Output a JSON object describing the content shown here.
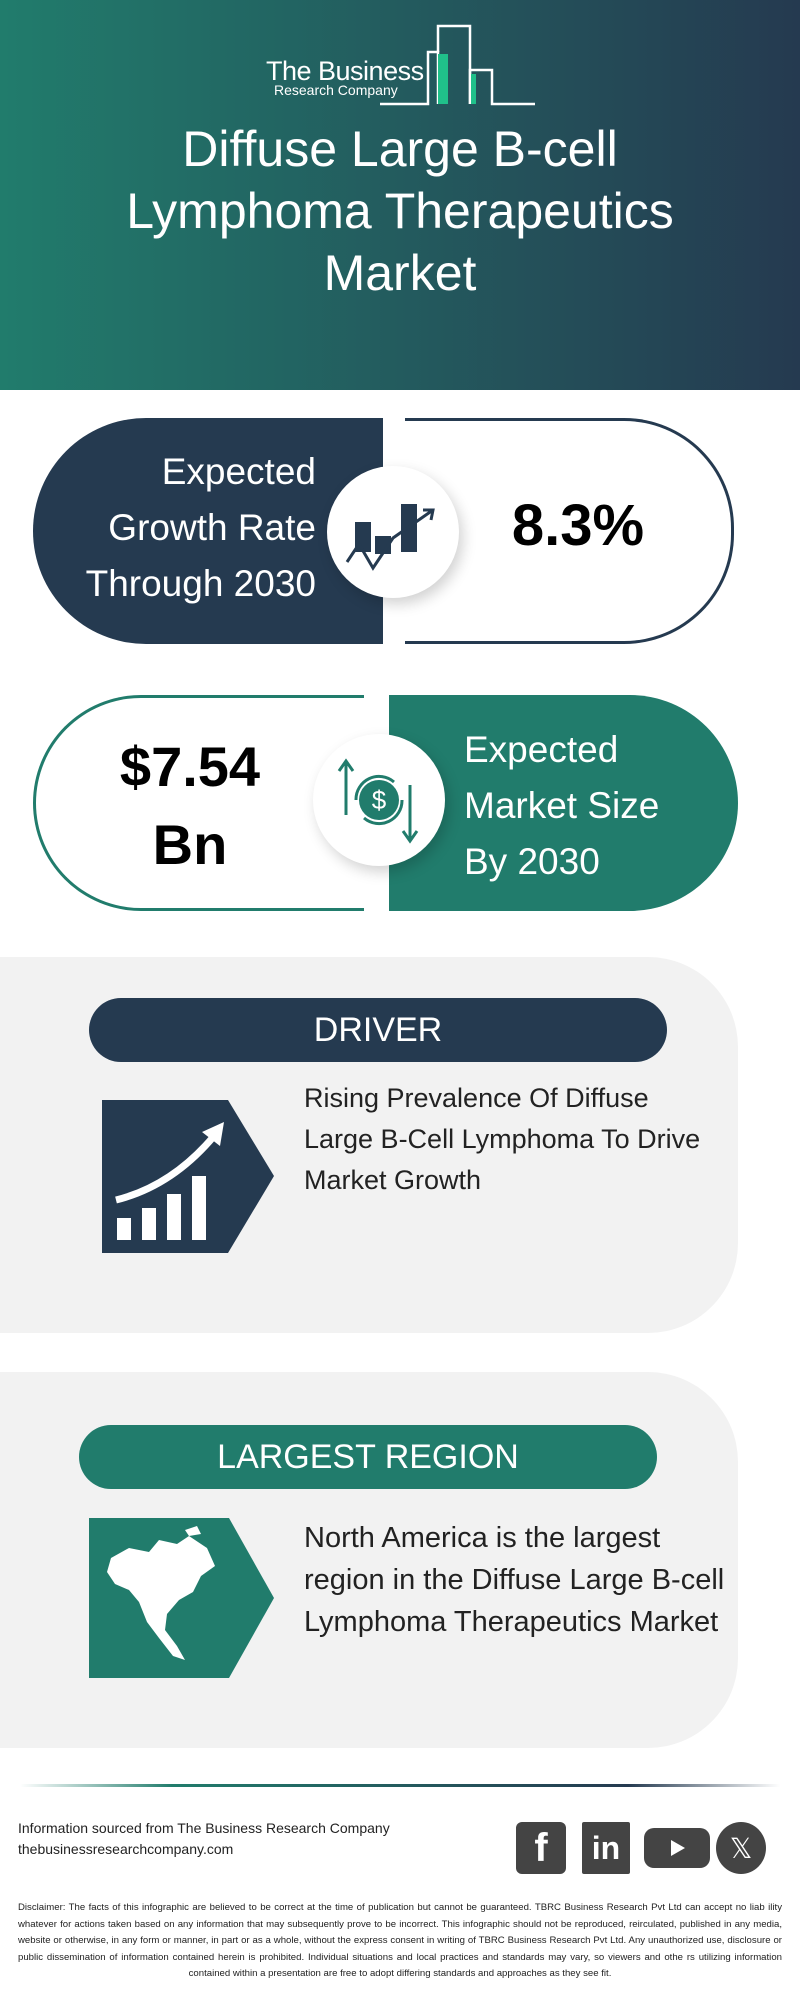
{
  "header": {
    "logo_line1": "The Business",
    "logo_line2": "Research Company",
    "title_lines": [
      "Diffuse Large B-cell",
      "Lymphoma Therapeutics",
      "Market"
    ]
  },
  "growth": {
    "label_lines": [
      "Expected",
      "Growth Rate",
      "Through 2030"
    ],
    "value": "8.3%",
    "icon": "growth-chart-icon"
  },
  "market_size": {
    "value_lines": [
      "$7.54",
      "Bn"
    ],
    "label_lines": [
      "Expected",
      "Market Size",
      "By 2030"
    ],
    "icon": "dollar-cycle-icon"
  },
  "driver": {
    "heading": "DRIVER",
    "text": "Rising Prevalence Of Diffuse Large B-Cell Lymphoma To Drive Market Growth",
    "icon": "bar-growth-arrow-icon"
  },
  "region": {
    "heading": "LARGEST REGION",
    "text": "North America is the largest region in the Diffuse Large B-cell Lymphoma Therapeutics Market",
    "icon": "north-america-map-icon"
  },
  "footer": {
    "source": "Information sourced from The Business Research Company",
    "website": "thebusinessresearchcompany.com",
    "social": [
      "facebook",
      "linkedin",
      "youtube",
      "x"
    ],
    "disclaimer": "Disclaimer: The facts of this infographic are believed to be correct at the time of publication but cannot be guaranteed. TBRC Business Research Pvt Ltd can accept no liab ility whatever for actions taken based on any information that may subsequently prove to be incorrect. This infographic should not be reproduced, reirculated, published in any media, website or otherwise, in any form or manner, in part or as a whole, without the express consent in writing of TBRC Business Research Pvt Ltd. Any unauthorized use, disclosure or public dissemination of information contained herein is prohibited. Individual situations and local practices and standards may vary, so viewers and othe rs utilizing information contained within a presentation are free to adopt differing standards and approaches as they see fit."
  },
  "colors": {
    "navy": "#253a50",
    "teal": "#217c6c",
    "panel": "#f2f2f2"
  }
}
